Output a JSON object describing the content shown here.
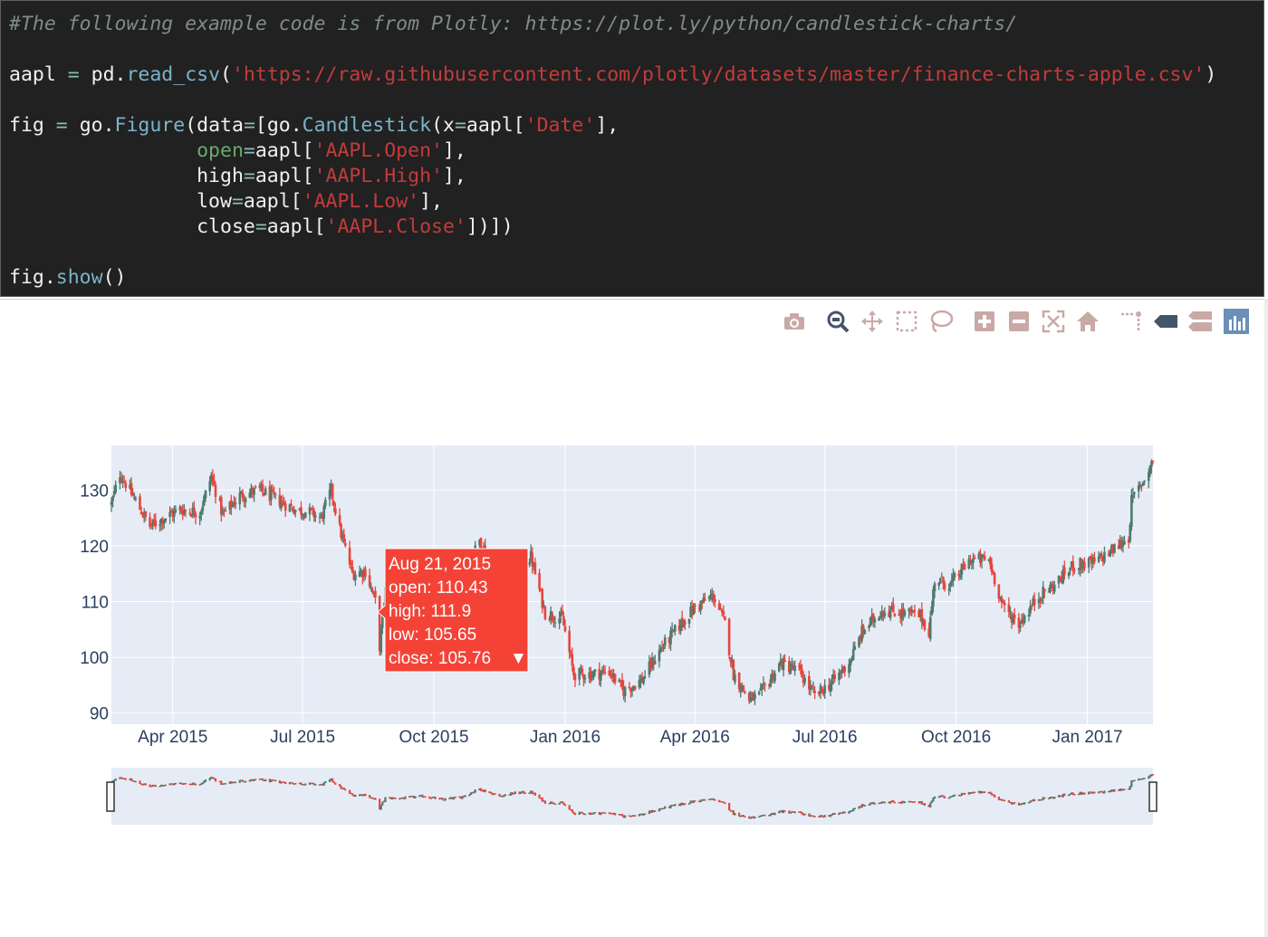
{
  "code_cell": {
    "lines": [
      [
        {
          "t": "#The following example code is from Plotly: https://plot.ly/python/candlestick-charts/",
          "c": "com"
        }
      ],
      [],
      [
        {
          "t": "aapl",
          "c": "pl"
        },
        {
          "t": " = ",
          "c": "op"
        },
        {
          "t": "pd.",
          "c": "pl"
        },
        {
          "t": "read_csv",
          "c": "fn"
        },
        {
          "t": "(",
          "c": "pl"
        },
        {
          "t": "'https://raw.githubusercontent.com/plotly/datasets/master/finance-charts-apple.csv'",
          "c": "str"
        },
        {
          "t": ")",
          "c": "pl"
        }
      ],
      [],
      [
        {
          "t": "fig",
          "c": "pl"
        },
        {
          "t": " = ",
          "c": "op"
        },
        {
          "t": "go.",
          "c": "pl"
        },
        {
          "t": "Figure",
          "c": "fn"
        },
        {
          "t": "(data",
          "c": "pl"
        },
        {
          "t": "=",
          "c": "op"
        },
        {
          "t": "[go.",
          "c": "pl"
        },
        {
          "t": "Candlestick",
          "c": "fn"
        },
        {
          "t": "(x",
          "c": "pl"
        },
        {
          "t": "=",
          "c": "op"
        },
        {
          "t": "aapl[",
          "c": "pl"
        },
        {
          "t": "'Date'",
          "c": "str"
        },
        {
          "t": "],",
          "c": "pl"
        }
      ],
      [
        {
          "t": "                ",
          "c": "pl"
        },
        {
          "t": "open",
          "c": "kw"
        },
        {
          "t": "=",
          "c": "op"
        },
        {
          "t": "aapl[",
          "c": "pl"
        },
        {
          "t": "'AAPL.Open'",
          "c": "str"
        },
        {
          "t": "],",
          "c": "pl"
        }
      ],
      [
        {
          "t": "                ",
          "c": "pl"
        },
        {
          "t": "high",
          "c": "pl"
        },
        {
          "t": "=",
          "c": "op"
        },
        {
          "t": "aapl[",
          "c": "pl"
        },
        {
          "t": "'AAPL.High'",
          "c": "str"
        },
        {
          "t": "],",
          "c": "pl"
        }
      ],
      [
        {
          "t": "                ",
          "c": "pl"
        },
        {
          "t": "low",
          "c": "pl"
        },
        {
          "t": "=",
          "c": "op"
        },
        {
          "t": "aapl[",
          "c": "pl"
        },
        {
          "t": "'AAPL.Low'",
          "c": "str"
        },
        {
          "t": "],",
          "c": "pl"
        }
      ],
      [
        {
          "t": "                ",
          "c": "pl"
        },
        {
          "t": "close",
          "c": "pl"
        },
        {
          "t": "=",
          "c": "op"
        },
        {
          "t": "aapl[",
          "c": "pl"
        },
        {
          "t": "'AAPL.Close'",
          "c": "str"
        },
        {
          "t": "])])",
          "c": "pl"
        }
      ],
      [],
      [
        {
          "t": "fig.",
          "c": "pl"
        },
        {
          "t": "show",
          "c": "fn"
        },
        {
          "t": "()",
          "c": "pl"
        }
      ]
    ]
  },
  "modebar": {
    "buttons": [
      {
        "icon": "camera-icon",
        "label": "Download plot as a png"
      },
      {
        "icon": "zoom-icon",
        "label": "Zoom"
      },
      {
        "icon": "pan-icon",
        "label": "Pan"
      },
      {
        "icon": "box-select-icon",
        "label": "Box Select"
      },
      {
        "icon": "lasso-select-icon",
        "label": "Lasso Select"
      },
      {
        "icon": "zoom-in-icon",
        "label": "Zoom in"
      },
      {
        "icon": "zoom-out-icon",
        "label": "Zoom out"
      },
      {
        "icon": "autoscale-icon",
        "label": "Autoscale"
      },
      {
        "icon": "reset-axes-icon",
        "label": "Reset axes"
      },
      {
        "icon": "spike-lines-icon",
        "label": "Toggle Spike Lines"
      },
      {
        "icon": "hover-closest-icon",
        "label": "Show closest data on hover"
      },
      {
        "icon": "hover-compare-icon",
        "label": "Compare data on hover"
      },
      {
        "icon": "plotly-logo-icon",
        "label": "Produced with Plotly"
      }
    ]
  },
  "colors": {
    "increasing": "#3d9970",
    "decreasing": "#ff4136",
    "candle_inc": "#4f7a6d",
    "candle_dec": "#e8453c",
    "plot_bg": "#e5ecf6",
    "grid": "#ffffff",
    "tick_text": "#2a3f5f",
    "hover_bg": "#f44336"
  },
  "chart_data": {
    "type": "candlestick",
    "x_axis": {
      "type": "date",
      "range": [
        "2015-02-17",
        "2017-02-16"
      ],
      "tick_labels": [
        "Apr 2015",
        "Jul 2015",
        "Oct 2015",
        "Jan 2016",
        "Apr 2016",
        "Jul 2016",
        "Oct 2016",
        "Jan 2017"
      ],
      "tick_dates": [
        "2015-04-01",
        "2015-07-01",
        "2015-10-01",
        "2016-01-01",
        "2016-04-01",
        "2016-07-01",
        "2016-10-01",
        "2017-01-01"
      ]
    },
    "y_axis": {
      "range": [
        88,
        138
      ],
      "tick_values": [
        90,
        100,
        110,
        120,
        130
      ],
      "tick_labels": [
        "90",
        "100",
        "110",
        "120",
        "130"
      ]
    },
    "grid": true,
    "rangeslider": true,
    "price_path": [
      [
        "2015-02-17",
        127.5
      ],
      [
        "2015-02-23",
        133
      ],
      [
        "2015-03-06",
        128
      ],
      [
        "2015-03-16",
        123.5
      ],
      [
        "2015-03-26",
        125
      ],
      [
        "2015-04-06",
        126.5
      ],
      [
        "2015-04-20",
        126
      ],
      [
        "2015-04-28",
        132.5
      ],
      [
        "2015-05-06",
        125.5
      ],
      [
        "2015-05-18",
        129
      ],
      [
        "2015-06-01",
        130
      ],
      [
        "2015-06-15",
        128
      ],
      [
        "2015-06-26",
        126.5
      ],
      [
        "2015-07-06",
        126
      ],
      [
        "2015-07-14",
        125
      ],
      [
        "2015-07-21",
        130
      ],
      [
        "2015-07-27",
        123
      ],
      [
        "2015-08-05",
        115
      ],
      [
        "2015-08-14",
        115.5
      ],
      [
        "2015-08-21",
        110
      ],
      [
        "2015-08-24",
        102
      ],
      [
        "2015-08-28",
        112
      ],
      [
        "2015-09-10",
        112
      ],
      [
        "2015-09-24",
        114
      ],
      [
        "2015-10-07",
        110.5
      ],
      [
        "2015-10-20",
        113
      ],
      [
        "2015-11-02",
        121
      ],
      [
        "2015-11-16",
        114
      ],
      [
        "2015-11-27",
        117
      ],
      [
        "2015-12-08",
        118
      ],
      [
        "2015-12-18",
        108
      ],
      [
        "2015-12-30",
        107
      ],
      [
        "2016-01-07",
        97
      ],
      [
        "2016-01-20",
        97
      ],
      [
        "2016-02-01",
        97.5
      ],
      [
        "2016-02-11",
        94
      ],
      [
        "2016-02-24",
        96
      ],
      [
        "2016-03-08",
        101.5
      ],
      [
        "2016-03-22",
        106
      ],
      [
        "2016-04-01",
        109
      ],
      [
        "2016-04-14",
        111
      ],
      [
        "2016-04-22",
        106
      ],
      [
        "2016-04-28",
        97
      ],
      [
        "2016-05-09",
        92.5
      ],
      [
        "2016-05-16",
        93
      ],
      [
        "2016-05-31",
        99
      ],
      [
        "2016-06-13",
        97.5
      ],
      [
        "2016-06-24",
        93
      ],
      [
        "2016-07-08",
        96
      ],
      [
        "2016-07-19",
        99.5
      ],
      [
        "2016-07-27",
        104.5
      ],
      [
        "2016-08-10",
        108.5
      ],
      [
        "2016-08-24",
        108
      ],
      [
        "2016-09-06",
        107.5
      ],
      [
        "2016-09-12",
        104.5
      ],
      [
        "2016-09-16",
        114
      ],
      [
        "2016-09-27",
        113
      ],
      [
        "2016-10-11",
        117.5
      ],
      [
        "2016-10-24",
        117.5
      ],
      [
        "2016-11-03",
        109
      ],
      [
        "2016-11-14",
        106
      ],
      [
        "2016-11-28",
        111
      ],
      [
        "2016-12-09",
        113
      ],
      [
        "2016-12-22",
        116.5
      ],
      [
        "2017-01-06",
        117
      ],
      [
        "2017-01-20",
        119.5
      ],
      [
        "2017-01-30",
        121.5
      ],
      [
        "2017-02-01",
        128
      ],
      [
        "2017-02-10",
        132
      ],
      [
        "2017-02-16",
        135.5
      ]
    ],
    "hover": {
      "date": "Aug 21, 2015",
      "open_label": "open: 110.43",
      "high_label": "high: 111.9",
      "low_label": "low: 105.65",
      "close_label": "close: 105.76",
      "arrow": "▼",
      "open": 110.43,
      "high": 111.9,
      "low": 105.65,
      "close": 105.76
    }
  }
}
